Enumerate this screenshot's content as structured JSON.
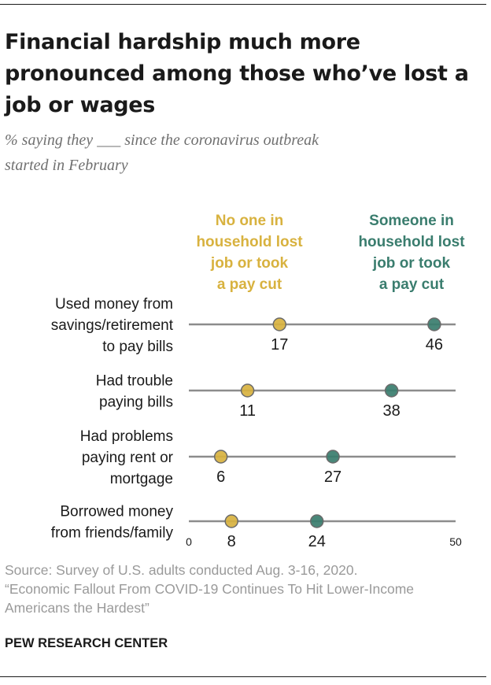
{
  "title_lines": [
    "Financial hardship much more",
    "pronounced among those who’ve lost a",
    "job or wages"
  ],
  "subtitle_lines": [
    "% saying they ___ since the coronavirus outbreak",
    "started in February"
  ],
  "chart_data": {
    "type": "dot",
    "xlim": [
      0,
      50
    ],
    "axis_tick_labels": [
      "0",
      "50"
    ],
    "series": [
      {
        "name": "No one in household lost job or took a pay cut",
        "legend_lines": [
          "No one in",
          "household lost",
          "job or took",
          "a pay cut"
        ],
        "color": "#d8b23f",
        "values": [
          17,
          11,
          6,
          8
        ]
      },
      {
        "name": "Someone in household lost job or took a pay cut",
        "legend_lines": [
          "Someone in",
          "household lost",
          "job or took",
          "a pay cut"
        ],
        "color": "#3a7d6e",
        "values": [
          46,
          38,
          27,
          24
        ]
      }
    ],
    "categories": [
      {
        "label": "Used money from savings/retirement to pay bills",
        "lines": [
          "Used money from",
          "savings/retirement",
          "to pay bills"
        ]
      },
      {
        "label": "Had trouble paying bills",
        "lines": [
          "Had trouble",
          "paying bills"
        ]
      },
      {
        "label": "Had problems paying rent or mortgage",
        "lines": [
          "Had problems",
          "paying rent or",
          "mortgage"
        ]
      },
      {
        "label": "Borrowed money from friends/family",
        "lines": [
          "Borrowed money",
          "from friends/family"
        ]
      }
    ]
  },
  "footer": {
    "source_lines": [
      "Source: Survey of U.S. adults conducted Aug. 3-16, 2020.",
      "“Economic Fallout From COVID-19 Continues To Hit Lower-Income",
      "Americans the Hardest”"
    ],
    "brand": "PEW RESEARCH CENTER"
  }
}
